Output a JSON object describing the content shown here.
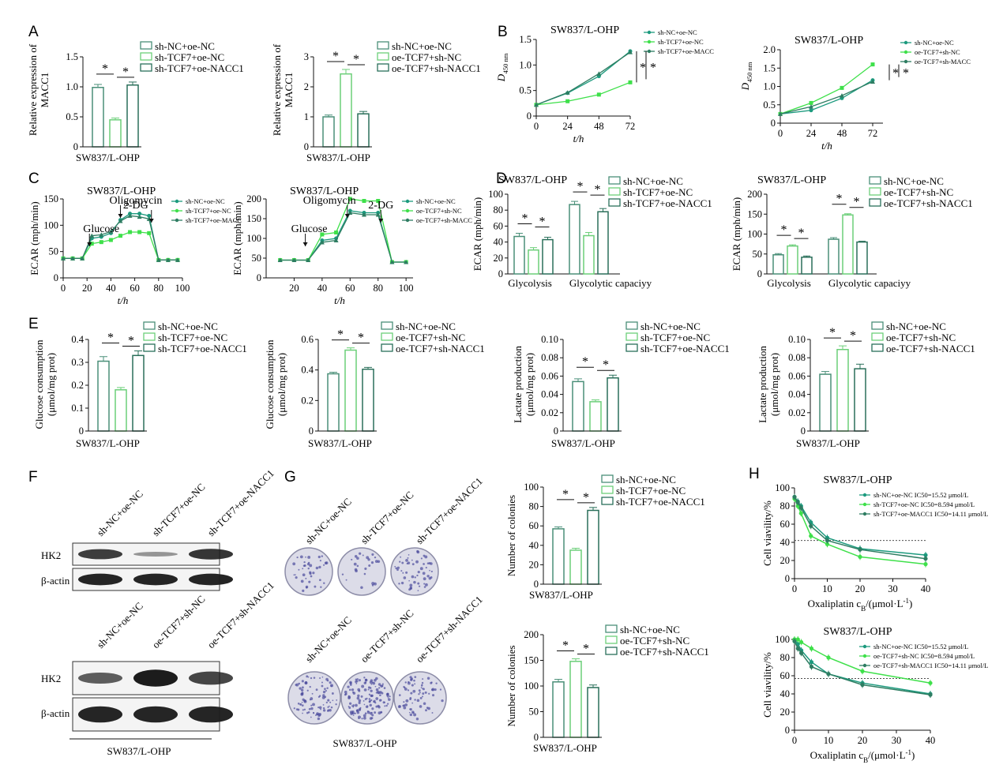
{
  "colors": {
    "c1": "#1c9a7e",
    "c2": "#3ee04a",
    "c3": "#2e7d62",
    "bar1": "#4a8f78",
    "bar2": "#6ccf79",
    "bar3": "#2a6f5a",
    "blot": "#1c1c1c"
  },
  "star": "*",
  "panels": {
    "A": {
      "label": "A",
      "ylabel": "Relative expression of\nMACC1",
      "xlabel": "SW837/L-OHP",
      "left": {
        "legend": [
          "sh-NC+oe-NC",
          "sh-TCF7+oe-NC",
          "sh-TCF7+oe-NACC1"
        ],
        "values": [
          0.99,
          0.45,
          1.03
        ],
        "errors": [
          0.05,
          0.03,
          0.05
        ],
        "yticks": [
          "0",
          "0.5",
          "1.0",
          "1.5"
        ],
        "ylim": [
          0,
          1.5
        ]
      },
      "right": {
        "legend": [
          "sh-NC+oe-NC",
          "oe-TCF7+sh-NC",
          "oe-TCF7+sh-NACC1"
        ],
        "values": [
          1.0,
          2.43,
          1.1
        ],
        "errors": [
          0.06,
          0.15,
          0.08
        ],
        "yticks": [
          "0",
          "1",
          "2",
          "3"
        ],
        "ylim": [
          0,
          3
        ]
      }
    },
    "B": {
      "label": "B",
      "title": "SW837/L-OHP",
      "xlabel": "t/h",
      "ylabel_main": "D",
      "ylabel_sub": "450 nm",
      "left": {
        "legend": [
          "sh-NC+oe-NC",
          "sh-TCF7+oe-NC",
          "sh-TCF7+oe-MACC"
        ],
        "xticks": [
          "0",
          "24",
          "48",
          "72"
        ],
        "yticks": [
          "0",
          "0.5",
          "1.0",
          "1.5"
        ],
        "ylim": [
          0,
          1.5
        ]
      },
      "right": {
        "legend": [
          "sh-NC+oe-NC",
          "oe-TCF7+sh-NC",
          "oe-TCF7+sh-MACC"
        ],
        "xticks": [
          "0",
          "24",
          "48",
          "72"
        ],
        "yticks": [
          "0",
          "0.5",
          "1.0",
          "1.5",
          "2.0"
        ],
        "ylim": [
          0,
          2.0
        ]
      }
    },
    "C": {
      "label": "C",
      "title": "SW837/L-OHP",
      "ylabel": "ECAR (mph/min)",
      "xlabel": "t/h",
      "annotations": [
        "Glucose",
        "Oligomycin",
        "2-DG"
      ],
      "left": {
        "legend": [
          "sh-NC+oe-NC",
          "sh-TCF7+oe-NC",
          "sh-TCF7+oe-MACC"
        ],
        "xticks": [
          "0",
          "20",
          "40",
          "60",
          "80",
          "100"
        ],
        "yticks": [
          "0",
          "50",
          "100",
          "150"
        ],
        "ylim": [
          0,
          150
        ]
      },
      "right": {
        "legend": [
          "sh-NC+oe-NC",
          "oe-TCF7+sh-NC",
          "oe-TCF7+sh-MACC"
        ],
        "xticks": [
          "20",
          "40",
          "60",
          "80",
          "100"
        ],
        "yticks": [
          "0",
          "50",
          "100",
          "150",
          "200"
        ],
        "ylim": [
          0,
          200
        ]
      }
    },
    "D": {
      "label": "D",
      "title": "SW837/L-OHP",
      "ylabel": "ECAR (mph/min)",
      "categories": [
        "Glycolysis",
        "Glycolytic capaciyy"
      ],
      "left": {
        "legend": [
          "sh-NC+oe-NC",
          "sh-TCF7+oe-NC",
          "sh-TCF7+oe-NACC1"
        ],
        "yticks": [
          "0",
          "20",
          "40",
          "60",
          "80",
          "100"
        ],
        "ylim": [
          0,
          100
        ],
        "series": [
          {
            "values": [
              47,
              87
            ],
            "errors": [
              4,
              4
            ]
          },
          {
            "values": [
              30,
              48
            ],
            "errors": [
              3,
              4
            ]
          },
          {
            "values": [
              43,
              78
            ],
            "errors": [
              3,
              4
            ]
          }
        ]
      },
      "right": {
        "legend": [
          "sh-NC+oe-NC",
          "oe-TCF7+sh-NC",
          "oe-TCF7+sh-NACC1"
        ],
        "yticks": [
          "0",
          "50",
          "100",
          "150",
          "200"
        ],
        "ylim": [
          0,
          200
        ],
        "series": [
          {
            "values": [
              48,
              87
            ],
            "errors": [
              3,
              4
            ]
          },
          {
            "values": [
              70,
              148
            ],
            "errors": [
              3,
              3
            ]
          },
          {
            "values": [
              42,
              80
            ],
            "errors": [
              3,
              2
            ]
          }
        ]
      }
    },
    "E": {
      "label": "E",
      "xlabel": "SW837/L-OHP",
      "p1": {
        "ylabel": "Glucose consumption\n(μmol/mg prot)",
        "legend": [
          "sh-NC+oe-NC",
          "sh-TCF7+oe-NC",
          "sh-TCF7+oe-NACC1"
        ],
        "values": [
          0.305,
          0.18,
          0.33
        ],
        "errors": [
          0.02,
          0.01,
          0.02
        ],
        "yticks": [
          "0",
          "0.1",
          "0.2",
          "0.3",
          "0.4"
        ],
        "ylim": [
          0,
          0.4
        ]
      },
      "p2": {
        "ylabel": "Glucose consumption\n(μmol/mg prot)",
        "legend": [
          "sh-NC+oe-NC",
          "oe-TCF7+sh-NC",
          "oe-TCF7+sh-NACC1"
        ],
        "values": [
          0.375,
          0.53,
          0.405
        ],
        "errors": [
          0.01,
          0.015,
          0.012
        ],
        "yticks": [
          "0",
          "0.2",
          "0.4",
          "0.6"
        ],
        "ylim": [
          0,
          0.6
        ]
      },
      "p3": {
        "ylabel": "Lactate production\n(μmol/mg prot)",
        "legend": [
          "sh-NC+oe-NC",
          "sh-TCF7+oe-NC",
          "sh-TCF7+oe-NACC1"
        ],
        "values": [
          0.054,
          0.032,
          0.058
        ],
        "errors": [
          0.003,
          0.002,
          0.003
        ],
        "yticks": [
          "0",
          "0.02",
          "0.04",
          "0.06",
          "0.08",
          "0.10"
        ],
        "ylim": [
          0,
          0.1
        ]
      },
      "p4": {
        "ylabel": "Lactate production\n(μmol/mg prot)",
        "legend": [
          "sh-NC+oe-NC",
          "oe-TCF7+sh-NC",
          "oe-TCF7+sh-NACC1"
        ],
        "values": [
          0.062,
          0.089,
          0.068
        ],
        "errors": [
          0.003,
          0.004,
          0.005
        ],
        "yticks": [
          "0",
          "0.02",
          "0.04",
          "0.06",
          "0.08",
          "0.10"
        ],
        "ylim": [
          0,
          0.1
        ]
      }
    },
    "F": {
      "label": "F",
      "top_lanes": [
        "sh-NC+oe-NC",
        "sh-TCF7+oe-NC",
        "sh-TCF7+oe-NACC1"
      ],
      "bottom_lanes": [
        "sh-NC+oe-NC",
        "oe-TCF7+sh-NC",
        "oe-TCF7+sh-NACC1"
      ],
      "hk2": "HK2",
      "actin": "β-actin",
      "caption": "SW837/L-OHP"
    },
    "G": {
      "label": "G",
      "top_lanes": [
        "sh-NC+oe-NC",
        "sh-TCF7+oe-NC",
        "sh-TCF7+oe-NACC1"
      ],
      "bottom_lanes": [
        "sh-NC+oe-NC",
        "oe-TCF7+sh-NC",
        "oe-TCF7+sh-NACC1"
      ],
      "caption": "SW837/L-OHP",
      "ylabel": "Number of colonies",
      "xlabel": "SW837/L-OHP",
      "top_chart": {
        "legend": [
          "sh-NC+oe-NC",
          "sh-TCF7+oe-NC",
          "sh-TCF7+oe-NACC1"
        ],
        "values": [
          57,
          35,
          76
        ],
        "errors": [
          2,
          2,
          3
        ],
        "yticks": [
          "0",
          "20",
          "40",
          "60",
          "80",
          "100"
        ],
        "ylim": [
          0,
          100
        ]
      },
      "bottom_chart": {
        "legend": [
          "sh-NC+oe-NC",
          "oe-TCF7+sh-NC",
          "oe-TCF7+sh-NACC1"
        ],
        "values": [
          108,
          148,
          97
        ],
        "errors": [
          5,
          5,
          5
        ],
        "yticks": [
          "0",
          "50",
          "100",
          "150",
          "200"
        ],
        "ylim": [
          0,
          200
        ]
      }
    },
    "H": {
      "label": "H",
      "title": "SW837/L-OHP",
      "ylabel": "Cell viavility/%",
      "xlabel": "Oxaliplatin c",
      "xlabel_sub": "B",
      "xlabel_tail": "/(μmol·L",
      "xlabel_sup": "-1",
      "xlabel_end": ")",
      "xticks": [
        "0",
        "10",
        "20",
        "30",
        "40"
      ],
      "yticks": [
        "0",
        "20",
        "40",
        "60",
        "80",
        "100"
      ],
      "top_legend": [
        "sh-NC+oe-NC IC50=15.52 μmol/L",
        "sh-TCF7+oe-NC IC50=8.594 μmol/L",
        "sh-TCF7+oe-MACC1 IC50=14.11 μmol/L"
      ],
      "bottom_legend": [
        "sh-NC+oe-NC IC50=15.52 μmol/L",
        "oe-TCF7+sh-NC IC50=8.594 μmol/L",
        "oe-TCF7+sh-MACC1 IC50=14.11 μmol/L"
      ]
    }
  },
  "chart_data": [
    {
      "type": "bar",
      "panel": "A-left",
      "categories": [
        "sh-NC+oe-NC",
        "sh-TCF7+oe-NC",
        "sh-TCF7+oe-NACC1"
      ],
      "values": [
        0.99,
        0.45,
        1.03
      ],
      "ylim": [
        0,
        1.5
      ]
    },
    {
      "type": "bar",
      "panel": "A-right",
      "categories": [
        "sh-NC+oe-NC",
        "oe-TCF7+sh-NC",
        "oe-TCF7+sh-NACC1"
      ],
      "values": [
        1.0,
        2.43,
        1.1
      ],
      "ylim": [
        0,
        3
      ]
    },
    {
      "type": "line",
      "panel": "B-left",
      "x": [
        0,
        24,
        48,
        72
      ],
      "series": [
        {
          "name": "sh-NC+oe-NC",
          "values": [
            0.22,
            0.45,
            0.78,
            1.27
          ]
        },
        {
          "name": "sh-TCF7+oe-NC",
          "values": [
            0.22,
            0.29,
            0.42,
            0.66
          ]
        },
        {
          "name": "sh-TCF7+oe-MACC",
          "values": [
            0.22,
            0.46,
            0.83,
            1.25
          ]
        }
      ],
      "ylim": [
        0,
        1.5
      ]
    },
    {
      "type": "line",
      "panel": "B-right",
      "x": [
        0,
        24,
        48,
        72
      ],
      "series": [
        {
          "name": "sh-NC+oe-NC",
          "values": [
            0.25,
            0.35,
            0.68,
            1.17
          ]
        },
        {
          "name": "oe-TCF7+sh-NC",
          "values": [
            0.25,
            0.55,
            0.96,
            1.6
          ]
        },
        {
          "name": "oe-TCF7+sh-MACC",
          "values": [
            0.25,
            0.45,
            0.75,
            1.13
          ]
        }
      ],
      "ylim": [
        0,
        2.0
      ]
    },
    {
      "type": "line",
      "panel": "C-left",
      "x": [
        0,
        8,
        16,
        24,
        32,
        40,
        48,
        56,
        64,
        72,
        80,
        88,
        96
      ],
      "series": [
        {
          "name": "sh-NC+oe-NC",
          "values": [
            37,
            37,
            37,
            75,
            78,
            85,
            110,
            122,
            122,
            118,
            34,
            34,
            34
          ]
        },
        {
          "name": "sh-TCF7+oe-NC",
          "values": [
            37,
            37,
            37,
            65,
            68,
            72,
            80,
            87,
            87,
            85,
            34,
            34,
            34
          ]
        },
        {
          "name": "sh-TCF7+oe-MACC",
          "values": [
            37,
            37,
            37,
            80,
            82,
            88,
            108,
            118,
            116,
            112,
            34,
            34,
            34
          ]
        }
      ],
      "ylim": [
        0,
        150
      ]
    },
    {
      "type": "line",
      "panel": "C-right",
      "x": [
        10,
        20,
        30,
        40,
        50,
        60,
        70,
        80,
        90,
        100
      ],
      "series": [
        {
          "name": "sh-NC+oe-NC",
          "values": [
            45,
            45,
            45,
            95,
            100,
            170,
            165,
            165,
            40,
            40
          ]
        },
        {
          "name": "oe-TCF7+sh-NC",
          "values": [
            45,
            45,
            45,
            110,
            115,
            200,
            195,
            195,
            40,
            40
          ]
        },
        {
          "name": "oe-TCF7+sh-MACC",
          "values": [
            45,
            45,
            45,
            90,
            95,
            165,
            160,
            160,
            40,
            40
          ]
        }
      ],
      "ylim": [
        0,
        200
      ]
    },
    {
      "type": "bar",
      "panel": "D-left",
      "categories": [
        "Glycolysis",
        "Glycolytic capaciyy"
      ],
      "series": [
        {
          "name": "sh-NC+oe-NC",
          "values": [
            47,
            87
          ]
        },
        {
          "name": "sh-TCF7+oe-NC",
          "values": [
            30,
            48
          ]
        },
        {
          "name": "sh-TCF7+oe-NACC1",
          "values": [
            43,
            78
          ]
        }
      ],
      "ylim": [
        0,
        100
      ]
    },
    {
      "type": "bar",
      "panel": "D-right",
      "categories": [
        "Glycolysis",
        "Glycolytic capaciyy"
      ],
      "series": [
        {
          "name": "sh-NC+oe-NC",
          "values": [
            48,
            87
          ]
        },
        {
          "name": "oe-TCF7+sh-NC",
          "values": [
            70,
            148
          ]
        },
        {
          "name": "oe-TCF7+sh-NACC1",
          "values": [
            42,
            80
          ]
        }
      ],
      "ylim": [
        0,
        200
      ]
    },
    {
      "type": "bar",
      "panel": "E-1",
      "categories": [
        "sh-NC+oe-NC",
        "sh-TCF7+oe-NC",
        "sh-TCF7+oe-NACC1"
      ],
      "values": [
        0.305,
        0.18,
        0.33
      ],
      "ylim": [
        0,
        0.4
      ]
    },
    {
      "type": "bar",
      "panel": "E-2",
      "categories": [
        "sh-NC+oe-NC",
        "oe-TCF7+sh-NC",
        "oe-TCF7+sh-NACC1"
      ],
      "values": [
        0.375,
        0.53,
        0.405
      ],
      "ylim": [
        0,
        0.6
      ]
    },
    {
      "type": "bar",
      "panel": "E-3",
      "categories": [
        "sh-NC+oe-NC",
        "sh-TCF7+oe-NC",
        "sh-TCF7+oe-NACC1"
      ],
      "values": [
        0.054,
        0.032,
        0.058
      ],
      "ylim": [
        0,
        0.1
      ]
    },
    {
      "type": "bar",
      "panel": "E-4",
      "categories": [
        "sh-NC+oe-NC",
        "oe-TCF7+sh-NC",
        "oe-TCF7+sh-NACC1"
      ],
      "values": [
        0.062,
        0.089,
        0.068
      ],
      "ylim": [
        0,
        0.1
      ]
    },
    {
      "type": "bar",
      "panel": "G-top",
      "categories": [
        "sh-NC+oe-NC",
        "sh-TCF7+oe-NC",
        "sh-TCF7+oe-NACC1"
      ],
      "values": [
        57,
        35,
        76
      ],
      "ylim": [
        0,
        100
      ]
    },
    {
      "type": "bar",
      "panel": "G-bottom",
      "categories": [
        "sh-NC+oe-NC",
        "oe-TCF7+sh-NC",
        "oe-TCF7+sh-NACC1"
      ],
      "values": [
        108,
        148,
        97
      ],
      "ylim": [
        0,
        200
      ]
    },
    {
      "type": "scatter",
      "panel": "H-top",
      "x": [
        0,
        1,
        2,
        5,
        10,
        20,
        40
      ],
      "series": [
        {
          "name": "sh-NC+oe-NC IC50=15.52 μmol/L",
          "values": [
            90,
            85,
            80,
            62,
            45,
            33,
            26
          ]
        },
        {
          "name": "sh-TCF7+oe-NC IC50=8.594 μmol/L",
          "values": [
            88,
            80,
            72,
            47,
            38,
            24,
            16
          ]
        },
        {
          "name": "sh-TCF7+oe-MACC1 IC50=14.11 μmol/L",
          "values": [
            90,
            84,
            78,
            58,
            42,
            32,
            22
          ]
        }
      ],
      "ylim": [
        0,
        100
      ],
      "xlim": [
        0,
        40
      ]
    },
    {
      "type": "scatter",
      "panel": "H-bottom",
      "x": [
        0,
        1,
        2,
        5,
        10,
        20,
        40
      ],
      "series": [
        {
          "name": "sh-NC+oe-NC IC50=15.52 μmol/L",
          "values": [
            100,
            95,
            88,
            75,
            62,
            52,
            40
          ]
        },
        {
          "name": "oe-TCF7+sh-NC IC50=8.594 μmol/L",
          "values": [
            100,
            100,
            97,
            90,
            80,
            65,
            52
          ]
        },
        {
          "name": "oe-TCF7+sh-MACC1 IC50=14.11 μmol/L",
          "values": [
            98,
            90,
            85,
            70,
            62,
            50,
            39
          ]
        }
      ],
      "ylim": [
        0,
        100
      ],
      "xlim": [
        0,
        40
      ]
    }
  ]
}
